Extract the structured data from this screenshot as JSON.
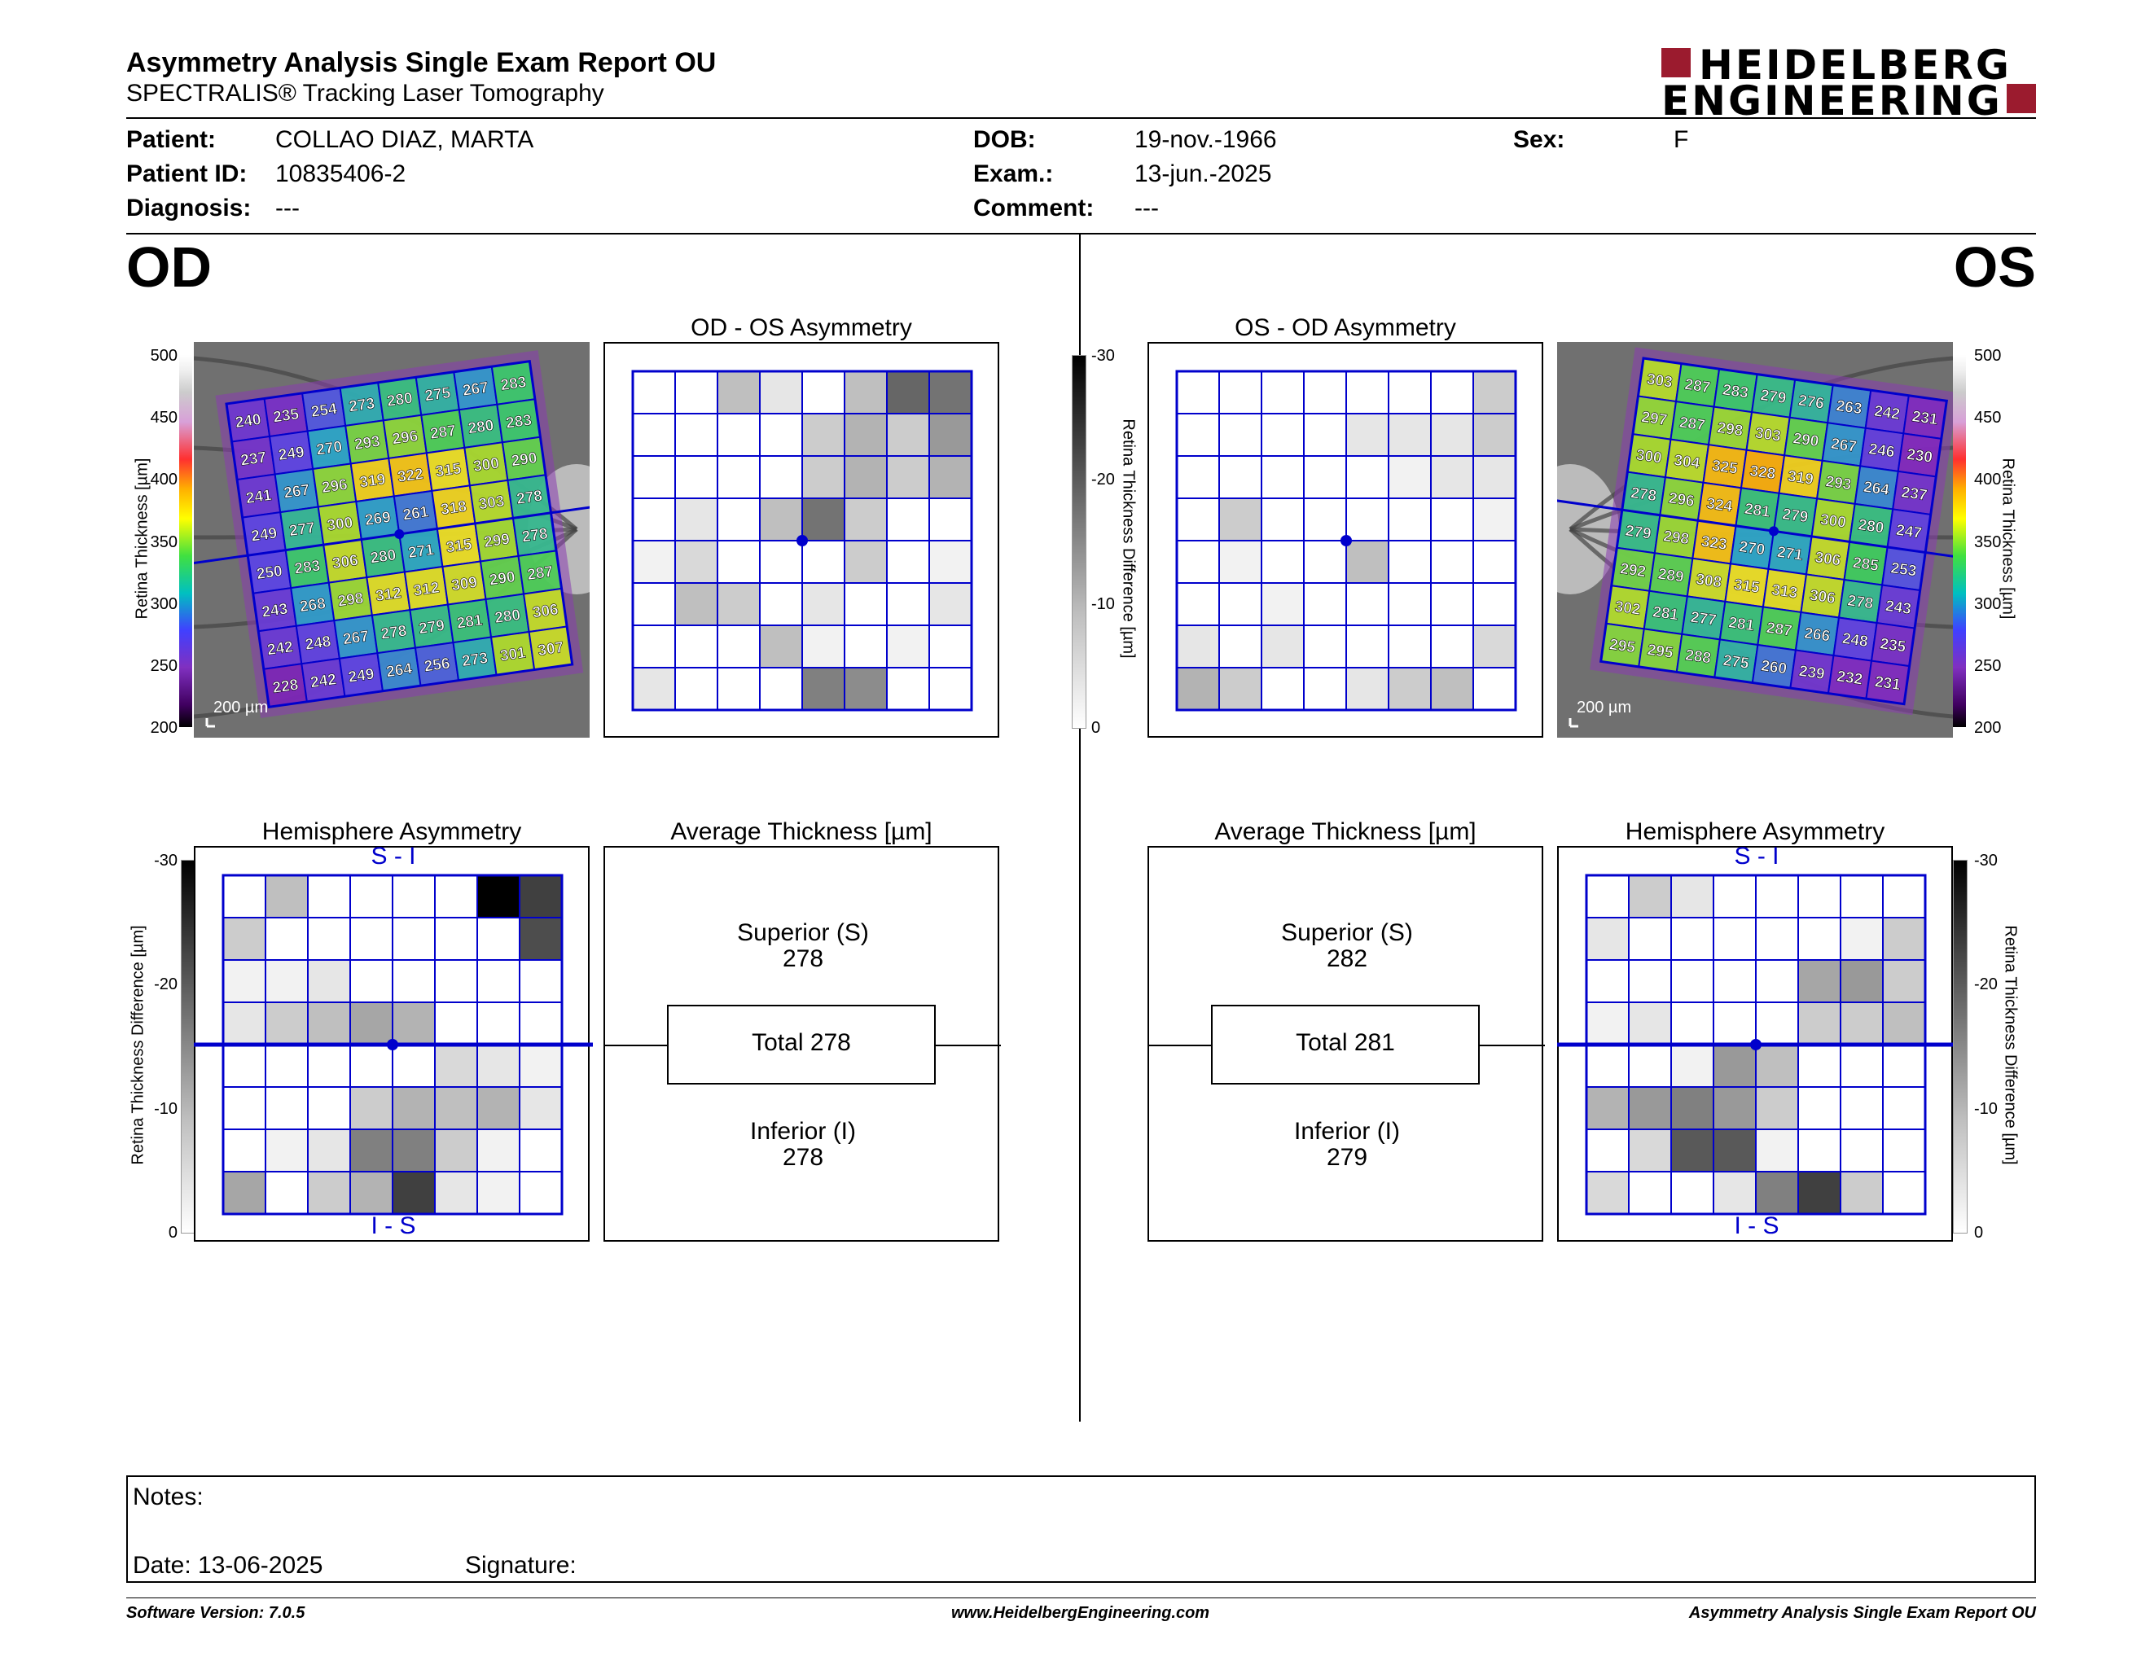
{
  "header": {
    "title": "Asymmetry Analysis Single Exam Report OU",
    "subtitle": "SPECTRALIS® Tracking Laser Tomography",
    "logo_line1": "HEIDELBERG",
    "logo_line2": "ENGINEERING"
  },
  "patient": {
    "patient_label": "Patient:",
    "patient_value": "COLLAO DIAZ, MARTA",
    "id_label": "Patient ID:",
    "id_value": "10835406-2",
    "diagnosis_label": "Diagnosis:",
    "diagnosis_value": "---",
    "dob_label": "DOB:",
    "dob_value": "19-nov.-1966",
    "exam_label": "Exam.:",
    "exam_value": "13-jun.-2025",
    "comment_label": "Comment:",
    "comment_value": "---",
    "sex_label": "Sex:",
    "sex_value": "F"
  },
  "od": {
    "eye_label": "OD",
    "asym_title": "OD - OS Asymmetry",
    "hemi_title": "Hemisphere Asymmetry",
    "avg_title": "Average Thickness [µm]",
    "hemi_top": "S - I",
    "hemi_bottom": "I - S",
    "scale_label": "200 µm",
    "superior_label": "Superior (S)",
    "superior_value": "278",
    "total_label": "Total 278",
    "inferior_label": "Inferior (I)",
    "inferior_value": "278",
    "thickness": [
      [
        240,
        235,
        254,
        273,
        280,
        275,
        267,
        283
      ],
      [
        237,
        249,
        270,
        293,
        296,
        287,
        280,
        283
      ],
      [
        241,
        267,
        296,
        319,
        322,
        315,
        300,
        290
      ],
      [
        249,
        277,
        300,
        269,
        261,
        318,
        303,
        278
      ],
      [
        250,
        283,
        306,
        280,
        271,
        315,
        299,
        278
      ],
      [
        243,
        268,
        298,
        312,
        312,
        309,
        290,
        287
      ],
      [
        242,
        248,
        267,
        278,
        279,
        281,
        280,
        306
      ],
      [
        228,
        242,
        249,
        264,
        256,
        273,
        301,
        307
      ]
    ],
    "asym_grid": [
      [
        0,
        0,
        0.25,
        0.1,
        0,
        0.25,
        0.6,
        0.55
      ],
      [
        0,
        0,
        0,
        0,
        0.2,
        0.3,
        0.2,
        0.4
      ],
      [
        0,
        0,
        0,
        0,
        0.2,
        0.3,
        0.2,
        0.3
      ],
      [
        0,
        0.1,
        0,
        0.25,
        0.55,
        0.2,
        0,
        0
      ],
      [
        0.05,
        0.15,
        0,
        0,
        0,
        0.2,
        0,
        0.05
      ],
      [
        0,
        0.25,
        0.2,
        0,
        0.1,
        0,
        0,
        0.1
      ],
      [
        0,
        0,
        0,
        0.25,
        0.05,
        0,
        0.05,
        0
      ],
      [
        0.1,
        0,
        0,
        0,
        0.5,
        0.45,
        0,
        0
      ]
    ],
    "hemi_grid": [
      [
        0,
        0.25,
        0,
        0,
        0,
        0,
        1,
        0.75
      ],
      [
        0.2,
        0,
        0,
        0,
        0,
        0,
        0,
        0.7
      ],
      [
        0.05,
        0.05,
        0.1,
        0,
        0,
        0,
        0,
        0
      ],
      [
        0.1,
        0.2,
        0.25,
        0.35,
        0.3,
        0,
        0,
        0
      ],
      [
        0,
        0,
        0,
        0,
        0,
        0.15,
        0.1,
        0.05
      ],
      [
        0,
        0,
        0,
        0.2,
        0.3,
        0.25,
        0.3,
        0.1
      ],
      [
        0,
        0.05,
        0.1,
        0.5,
        0.5,
        0.2,
        0.05,
        0
      ],
      [
        0.35,
        0,
        0.2,
        0.3,
        0.75,
        0.1,
        0.05,
        0
      ]
    ]
  },
  "os": {
    "eye_label": "OS",
    "asym_title": "OS - OD Asymmetry",
    "hemi_title": "Hemisphere Asymmetry",
    "avg_title": "Average Thickness [µm]",
    "hemi_top": "S - I",
    "hemi_bottom": "I - S",
    "scale_label": "200 µm",
    "superior_label": "Superior (S)",
    "superior_value": "282",
    "total_label": "Total 281",
    "inferior_label": "Inferior (I)",
    "inferior_value": "279",
    "thickness": [
      [
        303,
        287,
        283,
        279,
        276,
        263,
        242,
        231
      ],
      [
        297,
        287,
        298,
        303,
        290,
        267,
        246,
        230
      ],
      [
        300,
        304,
        325,
        328,
        319,
        293,
        264,
        237
      ],
      [
        278,
        296,
        324,
        281,
        279,
        300,
        280,
        247
      ],
      [
        279,
        298,
        323,
        270,
        271,
        306,
        285,
        253
      ],
      [
        292,
        289,
        308,
        315,
        313,
        306,
        278,
        243
      ],
      [
        302,
        281,
        277,
        281,
        287,
        266,
        248,
        235
      ],
      [
        295,
        295,
        288,
        275,
        260,
        239,
        232,
        231
      ]
    ],
    "asym_grid": [
      [
        0,
        0,
        0,
        0,
        0,
        0,
        0,
        0.2
      ],
      [
        0,
        0,
        0,
        0,
        0.1,
        0.1,
        0.1,
        0.2
      ],
      [
        0,
        0,
        0,
        0,
        0,
        0.05,
        0.1,
        0.1
      ],
      [
        0,
        0.2,
        0,
        0,
        0,
        0,
        0,
        0.05
      ],
      [
        0,
        0.05,
        0,
        0,
        0.25,
        0,
        0,
        0
      ],
      [
        0,
        0,
        0.05,
        0,
        0,
        0,
        0,
        0
      ],
      [
        0.1,
        0,
        0.1,
        0,
        0,
        0,
        0,
        0.15
      ],
      [
        0.3,
        0.2,
        0,
        0,
        0.1,
        0.2,
        0.25,
        0
      ]
    ],
    "hemi_grid": [
      [
        0,
        0.2,
        0.1,
        0,
        0,
        0,
        0,
        0
      ],
      [
        0.1,
        0,
        0,
        0,
        0,
        0,
        0.05,
        0.2
      ],
      [
        0,
        0,
        0,
        0,
        0,
        0.35,
        0.4,
        0.2
      ],
      [
        0.05,
        0.1,
        0,
        0,
        0,
        0.2,
        0.2,
        0.25
      ],
      [
        0,
        0,
        0.05,
        0.4,
        0.25,
        0,
        0,
        0
      ],
      [
        0.3,
        0.4,
        0.5,
        0.4,
        0.2,
        0,
        0,
        0
      ],
      [
        0,
        0.15,
        0.65,
        0.65,
        0.05,
        0,
        0,
        0
      ],
      [
        0.15,
        0,
        0,
        0.1,
        0.5,
        0.75,
        0.2,
        0
      ]
    ]
  },
  "colorbar": {
    "thickness_label": "Retina Thickness [µm]",
    "thickness_ticks": [
      "500",
      "450",
      "400",
      "350",
      "300",
      "250",
      "200"
    ],
    "diff_label": "Retina Thickness Difference [µm]",
    "diff_ticks": [
      "-30",
      "-20",
      "-10",
      "0"
    ]
  },
  "notes": {
    "notes_label": "Notes:",
    "date_label": "Date: 13-06-2025",
    "signature_label": "Signature:"
  },
  "footer": {
    "software": "Software Version: 7.0.5",
    "website": "www.HeidelbergEngineering.com",
    "report": "Asymmetry Analysis Single Exam Report OU"
  },
  "colors": {
    "grid_blue": "#0000cc",
    "logo_red": "#9b1b2e"
  }
}
